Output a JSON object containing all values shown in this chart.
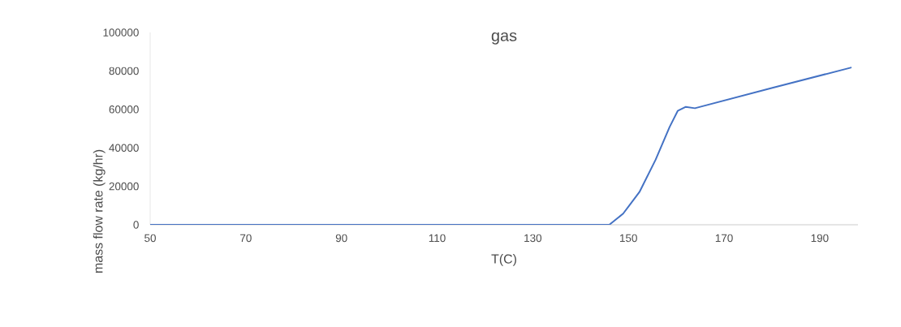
{
  "chart_data": {
    "type": "line",
    "title": "gas",
    "xlabel": "T(C)",
    "ylabel": "mass flow rate (kg/hr)",
    "series": [
      {
        "color": "#4472c4",
        "x": [
          50,
          70,
          90,
          110,
          130,
          146,
          148.9,
          152.3,
          155.7,
          158.6,
          160.3,
          162.0,
          163.9,
          180.1,
          196.5
        ],
        "values": [
          0,
          0,
          0,
          0,
          0,
          0,
          5800,
          17000,
          33900,
          50800,
          59200,
          61300,
          60600,
          71200,
          81700
        ]
      }
    ],
    "xlim": [
      50,
      198
    ],
    "xticks": [
      50,
      70,
      90,
      110,
      130,
      150,
      170,
      190
    ],
    "ylim": [
      0,
      100000
    ],
    "yticks": [
      0,
      20000,
      40000,
      60000,
      80000,
      100000
    ],
    "grid": false,
    "marker": "none",
    "line_style": "solid"
  }
}
